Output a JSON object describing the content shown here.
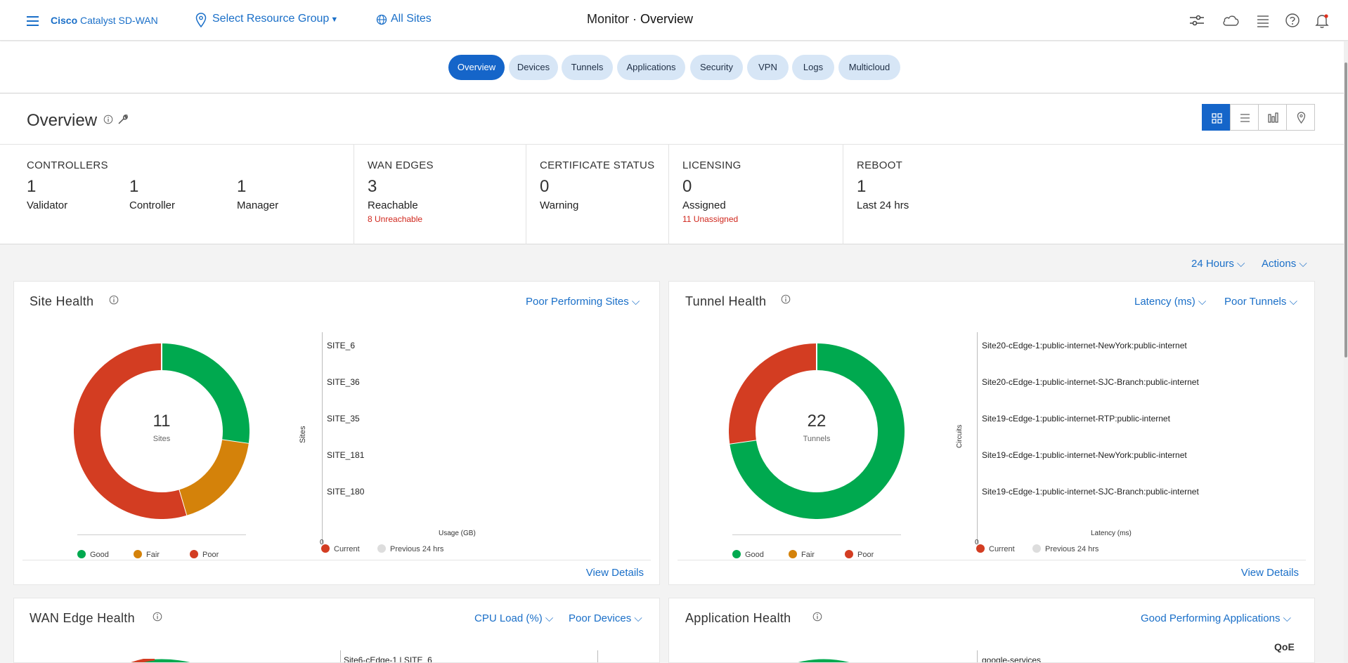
{
  "header": {
    "brand_bold": "Cisco",
    "brand_rest": " Catalyst SD-WAN",
    "resource_group": "Select Resource Group",
    "all_sites": "All Sites",
    "title_prefix": "Monitor · ",
    "title_main": "Overview"
  },
  "tabs": [
    {
      "label": "Overview",
      "active": true
    },
    {
      "label": "Devices"
    },
    {
      "label": "Tunnels"
    },
    {
      "label": "Applications"
    },
    {
      "label": "Security"
    },
    {
      "label": "VPN"
    },
    {
      "label": "Logs"
    },
    {
      "label": "Multicloud"
    }
  ],
  "overview": {
    "title": "Overview"
  },
  "summary": {
    "controllers": {
      "heading": "CONTROLLERS",
      "items": [
        {
          "count": "1",
          "label": "Validator"
        },
        {
          "count": "1",
          "label": "Controller"
        },
        {
          "count": "1",
          "label": "Manager"
        }
      ]
    },
    "wan_edges": {
      "heading": "WAN EDGES",
      "count": "3",
      "label": "Reachable",
      "sub": "8 Unreachable"
    },
    "certificate": {
      "heading": "CERTIFICATE STATUS",
      "count": "0",
      "label": "Warning"
    },
    "licensing": {
      "heading": "LICENSING",
      "count": "0",
      "label": "Assigned",
      "sub": "11 Unassigned"
    },
    "reboot": {
      "heading": "REBOOT",
      "count": "1",
      "label": "Last 24 hrs"
    }
  },
  "toolbar": {
    "time_range": "24 Hours",
    "actions": "Actions"
  },
  "site_health": {
    "title": "Site Health",
    "filter": "Poor Performing Sites",
    "total": "11",
    "total_label": "Sites",
    "legend": [
      "Good",
      "Fair",
      "Poor"
    ],
    "bar_axis_label": "Sites",
    "bar_x_label": "Usage (GB)",
    "bar_zero": "0",
    "bar_legend": [
      "Current",
      "Previous 24 hrs"
    ],
    "sites": [
      "SITE_6",
      "SITE_36",
      "SITE_35",
      "SITE_181",
      "SITE_180"
    ],
    "view_details": "View Details"
  },
  "tunnel_health": {
    "title": "Tunnel Health",
    "metric": "Latency (ms)",
    "filter": "Poor Tunnels",
    "total": "22",
    "total_label": "Tunnels",
    "legend": [
      "Good",
      "Fair",
      "Poor"
    ],
    "bar_axis_label": "Circuits",
    "bar_x_label": "Latency (ms)",
    "bar_zero": "0",
    "bar_legend": [
      "Current",
      "Previous 24 hrs"
    ],
    "circuits": [
      "Site20-cEdge-1:public-internet-NewYork:public-internet",
      "Site20-cEdge-1:public-internet-SJC-Branch:public-internet",
      "Site19-cEdge-1:public-internet-RTP:public-internet",
      "Site19-cEdge-1:public-internet-NewYork:public-internet",
      "Site19-cEdge-1:public-internet-SJC-Branch:public-internet"
    ],
    "view_details": "View Details"
  },
  "wan_edge_health": {
    "title": "WAN Edge Health",
    "metric": "CPU Load (%)",
    "filter": "Poor Devices",
    "first_item": "Site6-cEdge-1 | SITE_6"
  },
  "application_health": {
    "title": "Application Health",
    "filter": "Good Performing Applications",
    "qoe": "QoE",
    "first_item": "google-services"
  },
  "colors": {
    "good": "#00a94f",
    "fair": "#d4820a",
    "poor": "#d33d22",
    "accent": "#1565c9"
  },
  "chart_data": [
    {
      "type": "pie",
      "title": "Site Health",
      "categories": [
        "Good",
        "Fair",
        "Poor"
      ],
      "values": [
        3,
        2,
        6
      ]
    },
    {
      "type": "pie",
      "title": "Tunnel Health",
      "categories": [
        "Good",
        "Fair",
        "Poor"
      ],
      "values": [
        16,
        0,
        6
      ]
    }
  ]
}
